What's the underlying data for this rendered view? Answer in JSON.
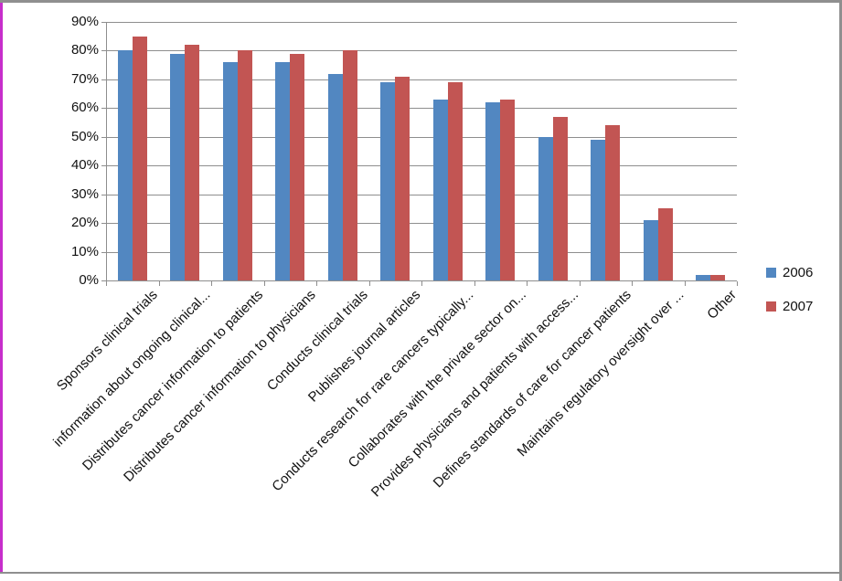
{
  "chart_data": {
    "type": "bar",
    "title": "",
    "categories": [
      "Sponsors clinical trials",
      "information about ongoing clinical...",
      "Distributes cancer information to patients",
      "Distributes cancer information to physicians",
      "Conducts clinical trials",
      "Publishes journal articles",
      "Conducts research for rare cancers typically...",
      "Collaborates with the private sector on...",
      "Provides physicians and patients with access...",
      "Defines standards of care for cancer patients",
      "Maintains regulatory oversight over ...",
      "Other"
    ],
    "series": [
      {
        "name": "2006",
        "color": "#5287c1",
        "values": [
          80,
          79,
          76,
          76,
          72,
          69,
          63,
          62,
          50,
          49,
          21,
          2
        ]
      },
      {
        "name": "2007",
        "color": "#c25553",
        "values": [
          85,
          82,
          80,
          79,
          80,
          71,
          69,
          63,
          57,
          54,
          25,
          2
        ]
      }
    ],
    "xlabel": "",
    "ylabel": "",
    "ylim": [
      0,
      90
    ],
    "ytick_step": 10,
    "ytick_labels": [
      "0%",
      "10%",
      "20%",
      "30%",
      "40%",
      "50%",
      "60%",
      "70%",
      "80%",
      "90%"
    ],
    "grid": true,
    "legend_position": "right",
    "category_label_rotation_deg": 45
  },
  "colors": {
    "gridline": "#8e8e8e",
    "axis": "#8e8e8e",
    "frame_gray": "#8f8f8f",
    "left_accent_magenta": "#c72ecb",
    "text": "#111111",
    "background": "#ffffff"
  }
}
